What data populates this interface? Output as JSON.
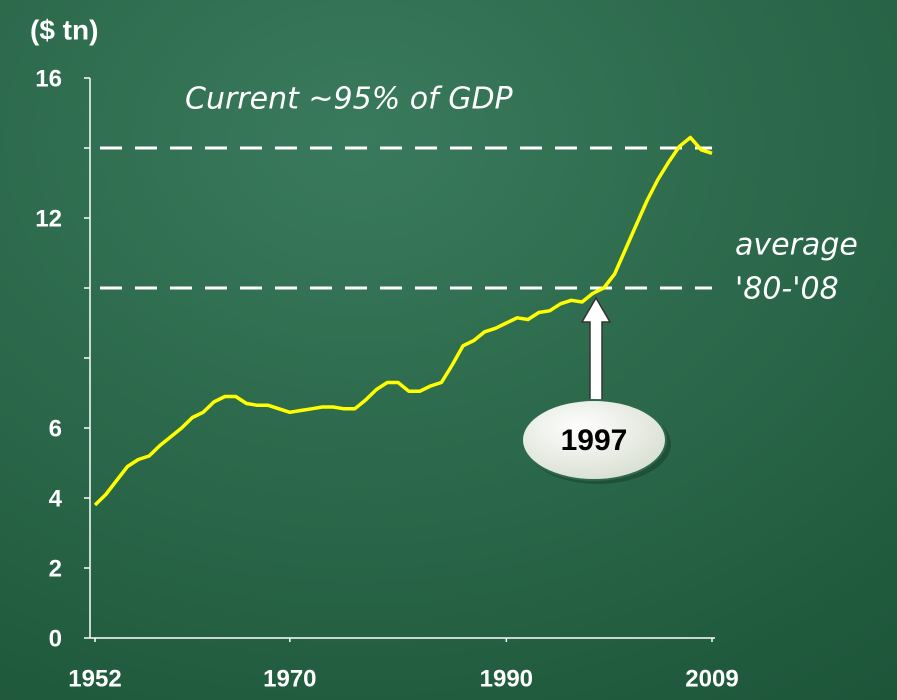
{
  "chart_data": {
    "type": "line",
    "y_label": "($ tn)",
    "x": [
      1952,
      1953,
      1954,
      1955,
      1956,
      1957,
      1958,
      1959,
      1960,
      1961,
      1962,
      1963,
      1964,
      1965,
      1966,
      1967,
      1968,
      1969,
      1970,
      1971,
      1972,
      1973,
      1974,
      1975,
      1976,
      1977,
      1978,
      1979,
      1980,
      1981,
      1982,
      1983,
      1984,
      1985,
      1986,
      1987,
      1988,
      1989,
      1990,
      1991,
      1992,
      1993,
      1994,
      1995,
      1996,
      1997,
      1998,
      1999,
      2000,
      2001,
      2002,
      2003,
      2004,
      2005,
      2006,
      2007,
      2008,
      2009
    ],
    "series": [
      {
        "color": "#ffff00",
        "values": [
          3.8,
          4.1,
          4.5,
          4.9,
          5.1,
          5.2,
          5.5,
          5.75,
          6.0,
          6.3,
          6.45,
          6.75,
          6.9,
          6.9,
          6.7,
          6.65,
          6.65,
          6.55,
          6.45,
          6.5,
          6.55,
          6.6,
          6.6,
          6.55,
          6.55,
          6.8,
          7.1,
          7.3,
          7.3,
          7.05,
          7.05,
          7.2,
          7.3,
          7.8,
          8.35,
          8.5,
          8.75,
          8.85,
          9.0,
          9.15,
          9.1,
          9.3,
          9.35,
          9.55,
          9.65,
          9.6,
          9.85,
          10.0,
          10.4,
          11.1,
          11.8,
          12.5,
          13.1,
          13.6,
          14.05,
          14.3,
          13.95,
          13.85
        ]
      }
    ],
    "xlim": [
      1952,
      2009
    ],
    "xticks": [
      1952,
      1970,
      1990,
      2009
    ],
    "ylim": [
      0,
      16
    ],
    "yticks": [
      0,
      2,
      4,
      6,
      12,
      16
    ],
    "yminor": [
      8,
      10,
      14
    ],
    "reference_lines": [
      {
        "value": 14,
        "label": [
          "Current ~95% of GDP"
        ]
      },
      {
        "value": 10,
        "label": [
          "average",
          "'80-'08"
        ]
      }
    ],
    "annotation": {
      "text": "1997"
    }
  }
}
